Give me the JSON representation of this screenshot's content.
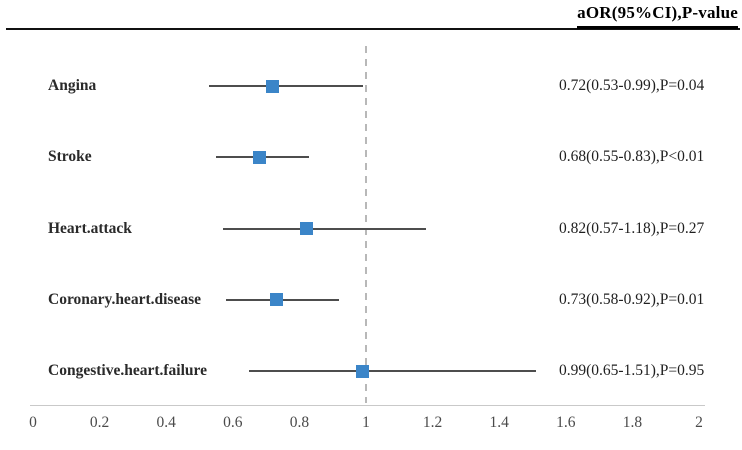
{
  "header": {
    "column_label": "aOR(95%CI),P-value"
  },
  "chart_data": {
    "type": "forest",
    "title": "",
    "column_header": "aOR(95%CI),P-value",
    "rows": [
      {
        "label": "Angina",
        "or": 0.72,
        "ci_low": 0.53,
        "ci_high": 0.99,
        "p": "P=0.04",
        "display": "0.72(0.53-0.99),P=0.04"
      },
      {
        "label": "Stroke",
        "or": 0.68,
        "ci_low": 0.55,
        "ci_high": 0.83,
        "p": "P<0.01",
        "display": "0.68(0.55-0.83),P<0.01"
      },
      {
        "label": "Heart.attack",
        "or": 0.82,
        "ci_low": 0.57,
        "ci_high": 1.18,
        "p": "P=0.27",
        "display": "0.82(0.57-1.18),P=0.27"
      },
      {
        "label": "Coronary.heart.disease",
        "or": 0.73,
        "ci_low": 0.58,
        "ci_high": 0.92,
        "p": "P=0.01",
        "display": "0.73(0.58-0.92),P=0.01"
      },
      {
        "label": "Congestive.heart.failure",
        "or": 0.99,
        "ci_low": 0.65,
        "ci_high": 1.51,
        "p": "P=0.95",
        "display": "0.99(0.65-1.51),P=0.95"
      }
    ],
    "x_axis": {
      "min": 0,
      "max": 2,
      "ticks": [
        0,
        0.2,
        0.4,
        0.6,
        0.8,
        1,
        1.2,
        1.4,
        1.6,
        1.8,
        2
      ],
      "tick_labels": [
        "0",
        "0.2",
        "0.4",
        "0.6",
        "0.8",
        "1",
        "1.2",
        "1.4",
        "1.6",
        "1.8",
        "2"
      ]
    },
    "reference_line": 1,
    "legend": null,
    "grid": false,
    "colors": {
      "marker": "#3b85c8",
      "ci_line": "#4d4d4d",
      "reference_line": "#b8b8b8",
      "axis_line": "#c9c9c9",
      "header_rule": "#111111",
      "row_label": "#2a2a2a",
      "value_text": "#1f1f1f",
      "tick_text": "#4a4a4a"
    }
  }
}
